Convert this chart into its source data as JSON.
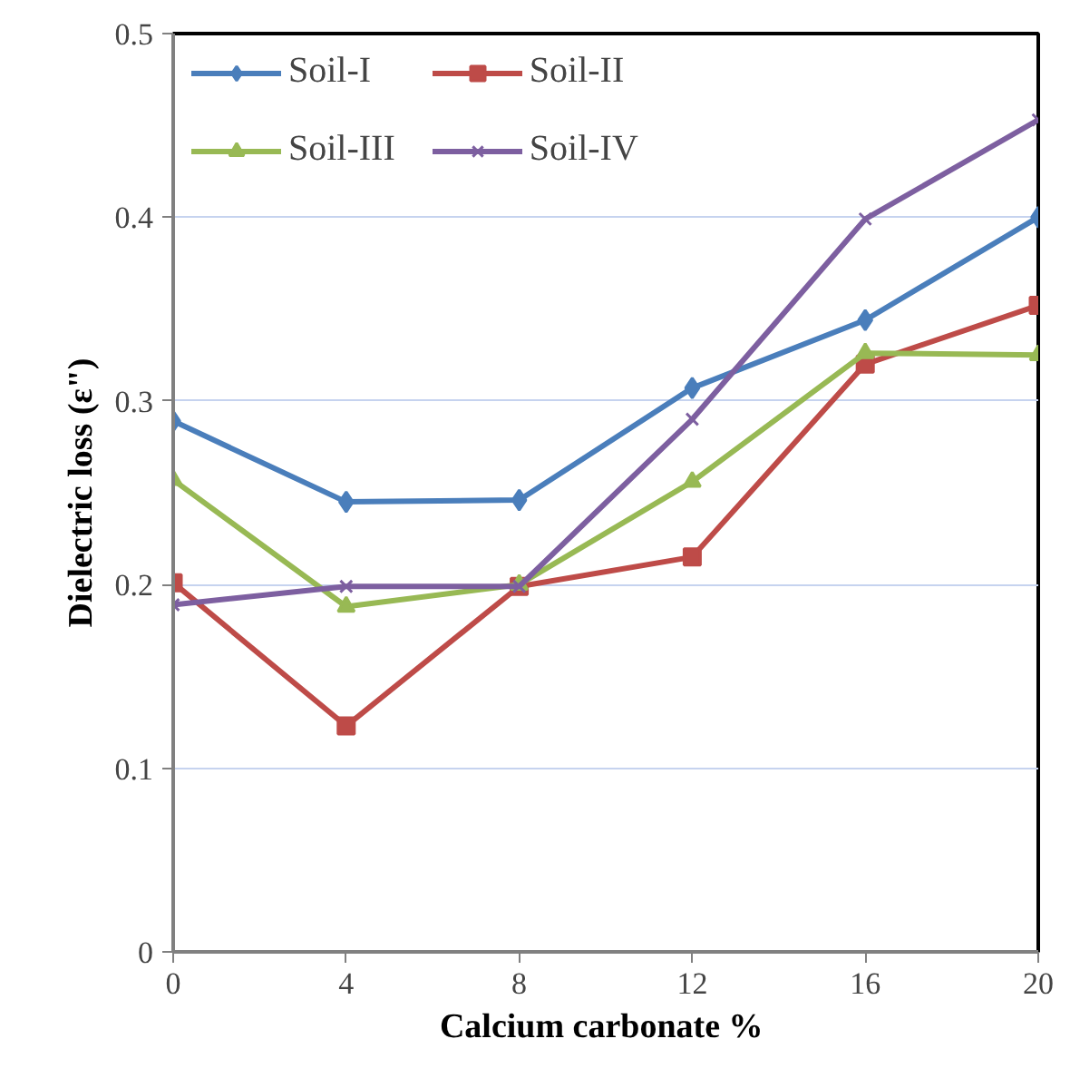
{
  "chart_data": {
    "type": "line",
    "xlabel": "Calcium carbonate  %",
    "ylabel": "Dielectric loss (ε\")",
    "x": [
      0,
      4,
      8,
      12,
      16,
      20
    ],
    "xlim": [
      0,
      20
    ],
    "xticks": [
      0,
      4,
      8,
      12,
      16,
      20
    ],
    "ylim": [
      0,
      0.5
    ],
    "yticks": [
      0,
      0.1,
      0.2,
      0.3,
      0.4,
      0.5
    ],
    "grid": "y",
    "legend": "top left",
    "series": [
      {
        "name": "Soil-I",
        "color": "#4a7ebb",
        "marker": "diamond",
        "values": [
          0.289,
          0.245,
          0.246,
          0.307,
          0.344,
          0.4
        ]
      },
      {
        "name": "Soil-II",
        "color": "#be4b48",
        "marker": "square",
        "values": [
          0.201,
          0.123,
          0.199,
          0.215,
          0.32,
          0.352
        ]
      },
      {
        "name": "Soil-III",
        "color": "#98b954",
        "marker": "triangle",
        "values": [
          0.257,
          0.188,
          0.2,
          0.256,
          0.326,
          0.325
        ]
      },
      {
        "name": "Soil-IV",
        "color": "#7d5fa0",
        "marker": "cross",
        "values": [
          0.189,
          0.199,
          0.199,
          0.29,
          0.399,
          0.453
        ]
      }
    ]
  }
}
